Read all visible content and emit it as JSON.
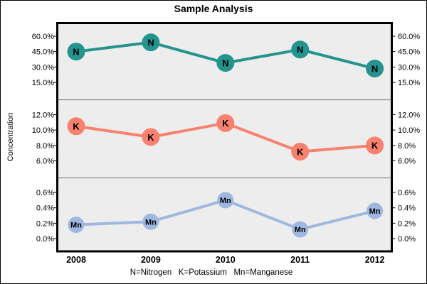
{
  "chart_data": {
    "type": "line",
    "title": "Sample Analysis",
    "ylabel": "Concentration",
    "footnote": "N=Nitrogen   K=Potassium   Mn=Manganese",
    "x_categories": [
      "2008",
      "2009",
      "2010",
      "2011",
      "2012"
    ],
    "plot_background": "#EDEDED",
    "divider_color": "#8A8A8A",
    "layout_hint": "three stacked panels sharing x-axis, y tick labels on both sides, grid off",
    "panels": [
      {
        "name": "Nitrogen",
        "symbol": "N",
        "color": "#24948D",
        "values": [
          45,
          54,
          34,
          47,
          28.5
        ],
        "unit": "%",
        "ticks": [
          60,
          45,
          30,
          15
        ],
        "tick_labels": [
          "60.0%",
          "45.0%",
          "30.0%",
          "15.0%"
        ]
      },
      {
        "name": "Potassium",
        "symbol": "K",
        "color": "#F8816F",
        "values": [
          10.5,
          9.1,
          10.9,
          7.2,
          8.0
        ],
        "unit": "%",
        "ticks": [
          12,
          10,
          8,
          6
        ],
        "tick_labels": [
          "12.0%",
          "10.0%",
          "8.0%",
          "6.0%"
        ]
      },
      {
        "name": "Manganese",
        "symbol": "Mn",
        "color": "#9FB8DF",
        "values": [
          0.18,
          0.22,
          0.5,
          0.12,
          0.36
        ],
        "unit": "%",
        "ticks": [
          0.6,
          0.4,
          0.2,
          0.0
        ],
        "tick_labels": [
          "0.6%",
          "0.4%",
          "0.2%",
          "0.0%"
        ]
      }
    ]
  }
}
